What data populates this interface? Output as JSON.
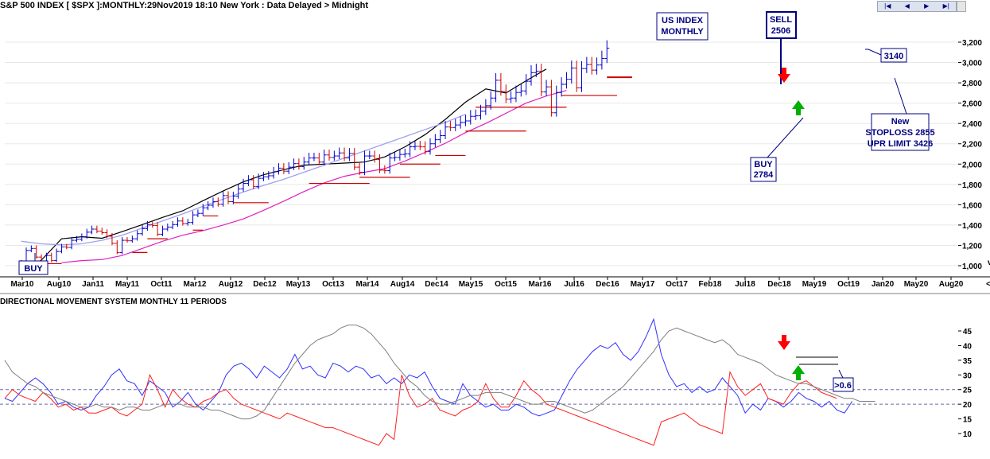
{
  "header": {
    "title": "S&P 500 INDEX [ $SPX ]:MONTHLY:29Nov2019 18:10 New York : Data Delayed > Midnight",
    "nav": [
      "|◀",
      "◀",
      "▶",
      "▶|"
    ]
  },
  "chart_data": [
    {
      "type": "line",
      "title": "S&P 500 INDEX [ $SPX ]:MONTHLY:29Nov2019 18:10 New York : Data Delayed > Midnight",
      "x_tick_labels": [
        "Mar10",
        "Aug10",
        "Jan11",
        "May11",
        "Oct11",
        "Mar12",
        "Aug12",
        "Dec12",
        "May13",
        "Oct13",
        "Mar14",
        "Aug14",
        "Dec14",
        "May15",
        "Oct15",
        "Mar16",
        "Jul16",
        "Dec16",
        "May17",
        "Oct17",
        "Feb18",
        "Jul18",
        "Dec18",
        "May19",
        "Oct19",
        "Jan20",
        "May20",
        "Aug20"
      ],
      "y_ticks": [
        1000,
        1200,
        1400,
        1600,
        1800,
        2000,
        2200,
        2400,
        2600,
        2800,
        3000,
        3200
      ],
      "ylim": [
        900,
        3320
      ],
      "close_series": {
        "name": "",
        "values": [
          1030,
          1150,
          1170,
          1085,
          1030,
          1100,
          1050,
          1140,
          1185,
          1180,
          1250,
          1260,
          1285,
          1330,
          1360,
          1340,
          1325,
          1290,
          1220,
          1130,
          1250,
          1245,
          1265,
          1315,
          1365,
          1405,
          1395,
          1310,
          1360,
          1380,
          1405,
          1440,
          1415,
          1425,
          1500,
          1515,
          1570,
          1595,
          1630,
          1605,
          1690,
          1630,
          1685,
          1755,
          1810,
          1845,
          1780,
          1860,
          1875,
          1885,
          1925,
          1960,
          1930,
          1970,
          2005,
          1975,
          2020,
          2060,
          2060,
          2020,
          2090,
          2065,
          2080,
          2110,
          2060,
          2105,
          1970,
          1920,
          2080,
          2080,
          2045,
          1940,
          1935,
          2060,
          2065,
          2095,
          2100,
          2170,
          2175,
          2170,
          2125,
          2200,
          2240,
          2280,
          2365,
          2360,
          2385,
          2410,
          2425,
          2470,
          2475,
          2520,
          2575,
          2650,
          2825,
          2715,
          2640,
          2650,
          2705,
          2720,
          2815,
          2900,
          2915,
          2710,
          2760,
          2505,
          2705,
          2785,
          2835,
          2945,
          2750,
          2940,
          2980,
          2925,
          2975,
          3040,
          3140
        ]
      },
      "moving_averages": [
        {
          "name": "",
          "color": "#000000",
          "values": [
            950,
            1055,
            1265,
            1285,
            1270,
            1335,
            1405,
            1475,
            1540,
            1640,
            1735,
            1825,
            1895,
            1945,
            1990,
            2000,
            2010,
            2020,
            2070,
            2170,
            2290,
            2440,
            2610,
            2740,
            2700,
            2820,
            2935
          ]
        },
        {
          "name": "",
          "color": "#e020c0",
          "values": [
            1030,
            1050,
            1060,
            1100,
            1170,
            1240,
            1300,
            1345,
            1400,
            1460,
            1545,
            1635,
            1730,
            1815,
            1880,
            1920,
            1955,
            2030,
            2115,
            2205,
            2310,
            2400,
            2500,
            2600,
            2670,
            2725
          ]
        },
        {
          "name": "",
          "color": "#9ea0f0",
          "values": [
            1240,
            1215,
            1205,
            1215,
            1250,
            1300,
            1370,
            1440,
            1510,
            1585,
            1655,
            1725,
            1790,
            1850,
            1920,
            1990,
            2060,
            2130,
            2200,
            2270,
            2340,
            2410,
            2490
          ]
        }
      ],
      "support_lines": [
        {
          "from": "Jun10",
          "to": "Oct10",
          "value": 1020
        },
        {
          "from": "Dec11",
          "to": "Mar12",
          "value": 1130
        },
        {
          "from": "Mar12",
          "to": "Jul12",
          "value": 1265
        },
        {
          "from": "Dec12",
          "to": "Feb13",
          "value": 1350
        },
        {
          "from": "Feb13",
          "to": "May13",
          "value": 1490
        },
        {
          "from": "Aug13",
          "to": "Mar14",
          "value": 1620
        },
        {
          "from": "Nov14",
          "to": "Nov15",
          "value": 1810
        },
        {
          "from": "Sep15",
          "to": "Jul16",
          "value": 1870
        },
        {
          "from": "May16",
          "to": "Jan17",
          "value": 2000
        },
        {
          "from": "Dec16",
          "to": "Jun17",
          "value": 2085
        },
        {
          "from": "Jun17",
          "to": "Jun18",
          "value": 2325
        },
        {
          "from": "Aug17",
          "to": "Feb19",
          "value": 2560
        },
        {
          "from": "Jan19",
          "to": "Dec19",
          "value": 2675
        },
        {
          "from": "Oct19",
          "to": "Mar20",
          "value": 2855
        }
      ],
      "signals": [
        {
          "type": "buy",
          "date": "Jun10",
          "label": "BUY"
        },
        {
          "type": "sell",
          "date": "Nov18",
          "value": 2506,
          "label": "SELL\n2506"
        },
        {
          "type": "buy",
          "date": "Mar19",
          "value": 2784,
          "label": "BUY\n2784"
        }
      ],
      "annotations": {
        "index_box": [
          "US INDEX",
          "MONTHLY"
        ],
        "sell_box": [
          "SELL",
          "2506"
        ],
        "buy_box": [
          "BUY",
          "2784"
        ],
        "buy_2010_box": "BUY",
        "last_price_box": "3140",
        "stoploss_box": [
          "New",
          "STOPLOSS 2855",
          "UPR LIMIT 3426"
        ]
      }
    },
    {
      "type": "line",
      "title": "DIRECTIONAL MOVEMENT SYSTEM MONTHLY 11 PERIODS",
      "y_ticks": [
        10,
        15,
        20,
        25,
        30,
        35,
        40,
        45
      ],
      "ylim": [
        5,
        50
      ],
      "reference_lines": [
        20,
        25
      ],
      "series": [
        {
          "name": "",
          "color": "#3030ff",
          "values": [
            22,
            21,
            24,
            27,
            29,
            27,
            24,
            20,
            21,
            19,
            18,
            19,
            23,
            26,
            30,
            32,
            28,
            27,
            23,
            28,
            26,
            24,
            19,
            21,
            24,
            20,
            18,
            21,
            24,
            30,
            33,
            34,
            32,
            29,
            33,
            31,
            29,
            32,
            37,
            32,
            33,
            30,
            29,
            34,
            33,
            31,
            33,
            32,
            29,
            30,
            27,
            29,
            27,
            30,
            29,
            31,
            26,
            22,
            21,
            20,
            27,
            23,
            21,
            19,
            20,
            18,
            18,
            20,
            19,
            17,
            16,
            17,
            18,
            23,
            28,
            32,
            35,
            38,
            40,
            39,
            41,
            37,
            35,
            38,
            43,
            49,
            37,
            30,
            26,
            27,
            24,
            26,
            24,
            25,
            29,
            26,
            23,
            17,
            20,
            18,
            22,
            21,
            19,
            21,
            24,
            22,
            21,
            19,
            21,
            18,
            17,
            21
          ]
        },
        {
          "name": "",
          "color": "#ff2020",
          "values": [
            22,
            25,
            23,
            22,
            21,
            24,
            22,
            19,
            20,
            18,
            19,
            17,
            17,
            18,
            19,
            17,
            16,
            18,
            20,
            30,
            25,
            19,
            25,
            22,
            20,
            19,
            21,
            22,
            24,
            25,
            22,
            20,
            19,
            18,
            17,
            16,
            15,
            17,
            16,
            15,
            14,
            13,
            12,
            12,
            11,
            10,
            9,
            8,
            7,
            6,
            10,
            8,
            30,
            23,
            19,
            20,
            22,
            18,
            17,
            16,
            18,
            19,
            21,
            27,
            22,
            19,
            19,
            23,
            28,
            25,
            23,
            20,
            19,
            18,
            17,
            16,
            15,
            14,
            13,
            12,
            11,
            10,
            9,
            8,
            7,
            6,
            14,
            15,
            16,
            17,
            15,
            13,
            12,
            11,
            10,
            31,
            26,
            23,
            25,
            27,
            22,
            21,
            20,
            24,
            27,
            28,
            26,
            24,
            23,
            22
          ]
        },
        {
          "name": "",
          "color": "#808080",
          "values": [
            35,
            31,
            29,
            27,
            26,
            24,
            23,
            22,
            21,
            20,
            19,
            19,
            20,
            19,
            19,
            18,
            19,
            19,
            18,
            18,
            19,
            20,
            20,
            20,
            19,
            19,
            19,
            18,
            18,
            17,
            16,
            15,
            15,
            16,
            18,
            22,
            26,
            30,
            34,
            37,
            40,
            42,
            43,
            44,
            46,
            47,
            47,
            46,
            44,
            41,
            38,
            34,
            31,
            28,
            26,
            23,
            21,
            20,
            20,
            21,
            22,
            23,
            23,
            24,
            24,
            24,
            23,
            22,
            21,
            20,
            20,
            21,
            21,
            20,
            19,
            18,
            17,
            18,
            20,
            22,
            24,
            26,
            29,
            32,
            35,
            38,
            42,
            45,
            46,
            45,
            44,
            43,
            42,
            41,
            42,
            40,
            37,
            36,
            35,
            34,
            32,
            30,
            29,
            28,
            27,
            27,
            26,
            25,
            24,
            23,
            22,
            22,
            21,
            21,
            21
          ]
        }
      ],
      "annotations": {
        "label": ">0.6"
      }
    }
  ]
}
